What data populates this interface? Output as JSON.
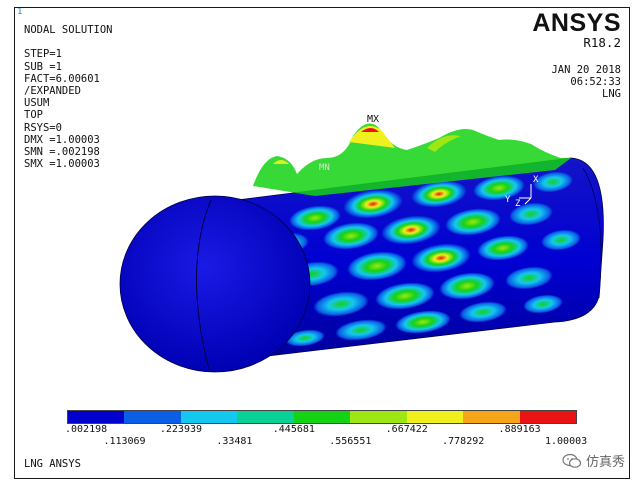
{
  "window_number": "1",
  "info_lines": [
    "NODAL SOLUTION",
    "",
    "STEP=1",
    "SUB =1",
    "FACT=6.00601",
    "/EXPANDED",
    "USUM",
    "TOP",
    "RSYS=0",
    "DMX =1.00003",
    "SMN =.002198",
    "SMX =1.00003"
  ],
  "brand": {
    "logo": "ANSYS",
    "release": "R18.2"
  },
  "date_lines": [
    "JAN 20 2018",
    "06:52:33",
    "LNG"
  ],
  "markers": {
    "max": "MX",
    "min": "MN"
  },
  "triad_labels": {
    "y": "Y",
    "z": "Z",
    "x": "X"
  },
  "legend": {
    "colors": [
      "#0000cc",
      "#0a5fe6",
      "#14c8f0",
      "#0ad296",
      "#14d214",
      "#9ee614",
      "#f0f01e",
      "#f5a519",
      "#eb1414"
    ],
    "values": [
      ".002198",
      ".113069",
      ".223939",
      ".33481",
      ".445681",
      ".556551",
      ".667422",
      ".778292",
      ".889163",
      "1.00003"
    ]
  },
  "footer_title": "LNG ANSYS",
  "watermark": {
    "text": "仿真秀",
    "icon": "wechat-icon"
  }
}
